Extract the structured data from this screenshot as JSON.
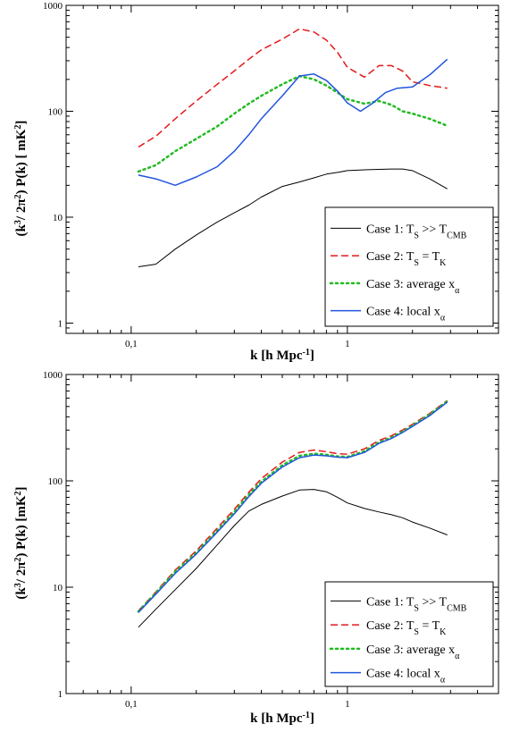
{
  "chart_data": [
    {
      "type": "line",
      "xscale": "log",
      "yscale": "log",
      "xlim": [
        0.05,
        5
      ],
      "ylim": [
        0.8,
        1000
      ],
      "xticklabels": [
        {
          "v": 0.1,
          "t": "0,1"
        },
        {
          "v": 1,
          "t": "1"
        }
      ],
      "yticklabels": [
        {
          "v": 1,
          "t": "1"
        },
        {
          "v": 10,
          "t": "10"
        },
        {
          "v": 100,
          "t": "100"
        },
        {
          "v": 1000,
          "t": "1000"
        }
      ],
      "xlabel": {
        "main": "k  [h Mpc",
        "sup": "-1",
        "end": "]"
      },
      "ylabel": {
        "p1": "(k",
        "s1": "3",
        "p2": "/ 2π",
        "s2": "2",
        "p3": ") P(k)   [ mK",
        "s3": "2",
        "p4": "]"
      },
      "legend_position": "lower-right",
      "series": [
        {
          "legend": {
            "main": "Case 1: T",
            "sub1": "S",
            "mid": " >> T",
            "sub2": "CMB"
          },
          "color": "#000000",
          "dash": "",
          "width": 1,
          "x": [
            0.108,
            0.13,
            0.16,
            0.2,
            0.25,
            0.3,
            0.35,
            0.4,
            0.5,
            0.6,
            0.7,
            0.8,
            0.9,
            1.0,
            1.2,
            1.4,
            1.6,
            1.8,
            2.0,
            2.4,
            2.9
          ],
          "y": [
            3.4,
            3.6,
            5.0,
            6.8,
            9.0,
            11.0,
            13.0,
            15.5,
            19.5,
            21.5,
            23.5,
            25.5,
            26.5,
            27.5,
            28.0,
            28.3,
            28.5,
            28.5,
            27.5,
            23.0,
            18.5
          ]
        },
        {
          "legend": {
            "main": "Case 2: T",
            "sub1": "S",
            "mid": " = T",
            "sub2": "K"
          },
          "color": "#e41a1c",
          "dash": "8,4",
          "width": 1.5,
          "x": [
            0.108,
            0.13,
            0.16,
            0.2,
            0.25,
            0.3,
            0.35,
            0.4,
            0.5,
            0.6,
            0.7,
            0.8,
            0.9,
            1.0,
            1.2,
            1.4,
            1.6,
            1.8,
            2.0,
            2.4,
            2.9
          ],
          "y": [
            46,
            58,
            85,
            125,
            180,
            240,
            310,
            380,
            480,
            600,
            560,
            470,
            360,
            260,
            210,
            270,
            270,
            240,
            190,
            175,
            165
          ]
        },
        {
          "legend": {
            "main": "Case 3: average x",
            "sub1": "α",
            "mid": "",
            "sub2": ""
          },
          "color": "#22bb22",
          "dash": "2,4",
          "width": 2.5,
          "x": [
            0.108,
            0.13,
            0.16,
            0.2,
            0.25,
            0.3,
            0.35,
            0.4,
            0.5,
            0.6,
            0.7,
            0.8,
            0.9,
            1.0,
            1.2,
            1.4,
            1.6,
            1.8,
            2.0,
            2.4,
            2.9
          ],
          "y": [
            27,
            31,
            42,
            55,
            72,
            95,
            118,
            140,
            180,
            215,
            200,
            175,
            150,
            130,
            118,
            125,
            115,
            100,
            95,
            85,
            73
          ]
        },
        {
          "legend": {
            "main": "Case 4: local x",
            "sub1": "α",
            "mid": "",
            "sub2": ""
          },
          "color": "#2255dd",
          "dash": "",
          "width": 1.5,
          "x": [
            0.108,
            0.13,
            0.16,
            0.2,
            0.25,
            0.3,
            0.35,
            0.4,
            0.5,
            0.6,
            0.7,
            0.8,
            0.9,
            1.0,
            1.15,
            1.3,
            1.5,
            1.7,
            2.0,
            2.4,
            2.9
          ],
          "y": [
            25,
            23,
            20,
            24,
            30,
            42,
            60,
            85,
            140,
            215,
            225,
            195,
            155,
            120,
            100,
            118,
            150,
            165,
            170,
            220,
            310
          ]
        }
      ]
    },
    {
      "type": "line",
      "xscale": "log",
      "yscale": "log",
      "xlim": [
        0.05,
        5
      ],
      "ylim": [
        1,
        1000
      ],
      "xticklabels": [
        {
          "v": 0.1,
          "t": "0,1"
        },
        {
          "v": 1,
          "t": "1"
        }
      ],
      "yticklabels": [
        {
          "v": 1,
          "t": "1"
        },
        {
          "v": 10,
          "t": "10"
        },
        {
          "v": 100,
          "t": "100"
        },
        {
          "v": 1000,
          "t": "1000"
        }
      ],
      "xlabel": {
        "main": "k  [h Mpc",
        "sup": "-1",
        "end": "]"
      },
      "ylabel": {
        "p1": "(k",
        "s1": "3",
        "p2": "/ 2π",
        "s2": "2",
        "p3": ") P(k)   [mK",
        "s3": "2",
        "p4": "]"
      },
      "legend_position": "lower-right",
      "series": [
        {
          "legend": {
            "main": "Case 1: T",
            "sub1": "S",
            "mid": " >> T",
            "sub2": "CMB"
          },
          "color": "#000000",
          "dash": "",
          "width": 1,
          "x": [
            0.108,
            0.13,
            0.16,
            0.2,
            0.25,
            0.3,
            0.35,
            0.4,
            0.5,
            0.6,
            0.7,
            0.8,
            0.9,
            1.0,
            1.2,
            1.4,
            1.6,
            1.8,
            2.0,
            2.4,
            2.9
          ],
          "y": [
            4.2,
            6.2,
            9.5,
            15,
            25,
            38,
            52,
            60,
            72,
            82,
            83,
            79,
            70,
            62,
            55,
            51,
            48,
            45,
            41,
            36,
            31
          ]
        },
        {
          "legend": {
            "main": "Case 2: T",
            "sub1": "S",
            "mid": " = T",
            "sub2": "K"
          },
          "color": "#e41a1c",
          "dash": "8,4",
          "width": 1.5,
          "x": [
            0.108,
            0.13,
            0.16,
            0.2,
            0.25,
            0.3,
            0.35,
            0.4,
            0.5,
            0.6,
            0.7,
            0.8,
            0.9,
            1.0,
            1.2,
            1.4,
            1.6,
            1.8,
            2.0,
            2.4,
            2.9
          ],
          "y": [
            6.0,
            9.0,
            14.5,
            22,
            36,
            54,
            78,
            105,
            150,
            185,
            195,
            188,
            180,
            178,
            200,
            240,
            265,
            300,
            340,
            430,
            570
          ]
        },
        {
          "legend": {
            "main": "Case 3: average x",
            "sub1": "α",
            "mid": "",
            "sub2": ""
          },
          "color": "#22bb22",
          "dash": "2,4",
          "width": 2.5,
          "x": [
            0.108,
            0.13,
            0.16,
            0.2,
            0.25,
            0.3,
            0.35,
            0.4,
            0.5,
            0.6,
            0.7,
            0.8,
            0.9,
            1.0,
            1.2,
            1.4,
            1.6,
            1.8,
            2.0,
            2.4,
            2.9
          ],
          "y": [
            5.9,
            8.8,
            14,
            21,
            34,
            51,
            74,
            98,
            140,
            172,
            180,
            176,
            170,
            168,
            190,
            230,
            255,
            290,
            330,
            420,
            560
          ]
        },
        {
          "legend": {
            "main": "Case 4: local x",
            "sub1": "α",
            "mid": "",
            "sub2": ""
          },
          "color": "#2255dd",
          "dash": "",
          "width": 1.5,
          "x": [
            0.108,
            0.13,
            0.16,
            0.2,
            0.25,
            0.3,
            0.35,
            0.4,
            0.5,
            0.6,
            0.7,
            0.8,
            0.9,
            1.0,
            1.2,
            1.4,
            1.6,
            1.8,
            2.0,
            2.4,
            2.9
          ],
          "y": [
            5.8,
            8.6,
            13.5,
            20.5,
            33,
            49,
            71,
            95,
            135,
            165,
            175,
            172,
            167,
            165,
            185,
            225,
            250,
            285,
            325,
            410,
            550
          ]
        }
      ]
    }
  ]
}
